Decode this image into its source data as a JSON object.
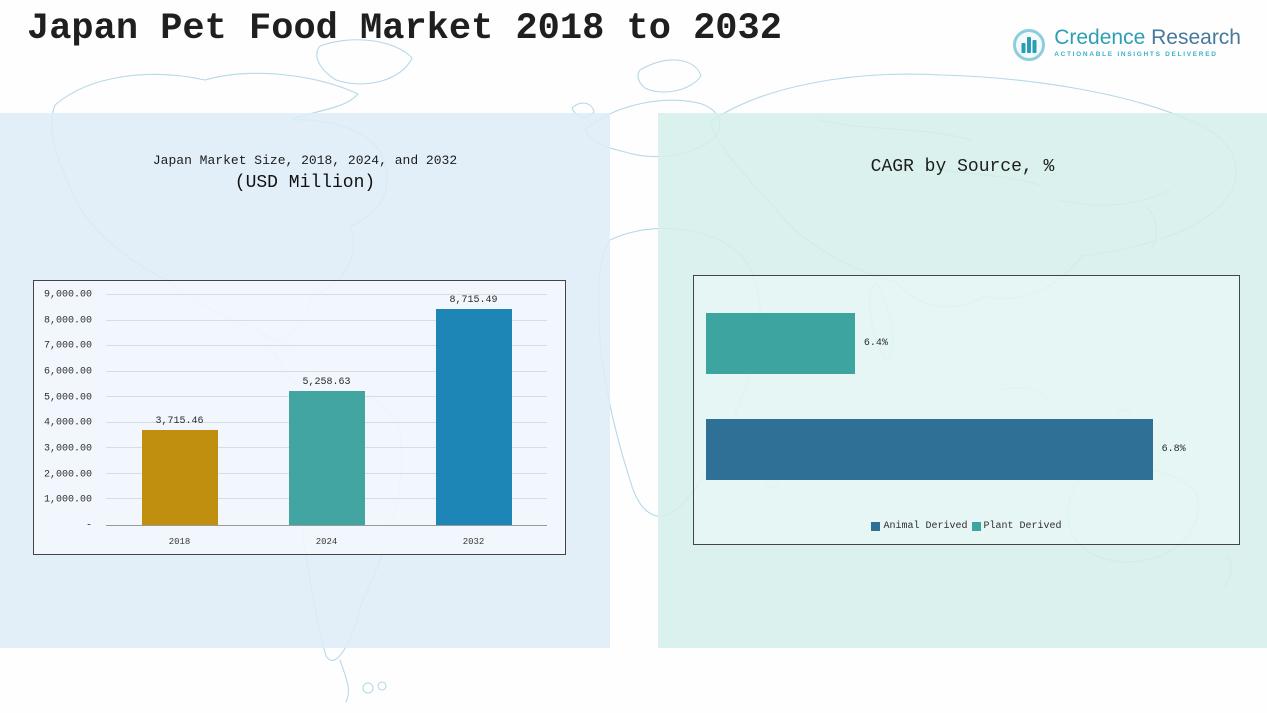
{
  "page": {
    "title": "Japan Pet Food Market 2018 to 2032"
  },
  "logo": {
    "brand_primary": "Credence",
    "brand_secondary": "Research",
    "tagline": "ACTIONABLE INSIGHTS DELIVERED"
  },
  "left_panel": {
    "title": "Japan Market Size, 2018, 2024, and 2032",
    "subtitle": "(USD Million)"
  },
  "right_panel": {
    "title": "CAGR by Source, %"
  },
  "chart_data": [
    {
      "type": "bar",
      "title": "Japan Market Size, 2018, 2024, and 2032 (USD Million)",
      "categories": [
        "2018",
        "2024",
        "2032"
      ],
      "values": [
        3715.46,
        5258.63,
        8715.49
      ],
      "value_labels": [
        "3,715.46",
        "5,258.63",
        "8,715.49"
      ],
      "bar_colors": [
        "#c08f10",
        "#42a5a1",
        "#1e86b6"
      ],
      "xlabel": "",
      "ylabel": "",
      "ylim": [
        0,
        9000
      ],
      "ytick_labels": [
        "9,000.00",
        "8,000.00",
        "7,000.00",
        "6,000.00",
        "5,000.00",
        "4,000.00",
        "3,000.00",
        "2,000.00",
        "1,000.00",
        "-"
      ],
      "grid": true,
      "legend_position": "none"
    },
    {
      "type": "bar",
      "orientation": "horizontal",
      "title": "CAGR by Source, %",
      "categories": [
        "Plant Derived",
        "Animal Derived"
      ],
      "values": [
        6.4,
        6.8
      ],
      "value_labels": [
        "6.4%",
        "6.8%"
      ],
      "bar_colors": [
        "#3da4a0",
        "#2f7097"
      ],
      "xlim": [
        6.2,
        6.9
      ],
      "grid": false,
      "legend": [
        {
          "label": "Animal Derived",
          "color": "#2f7097"
        },
        {
          "label": "Plant Derived",
          "color": "#3da4a0"
        }
      ],
      "legend_position": "bottom"
    }
  ]
}
